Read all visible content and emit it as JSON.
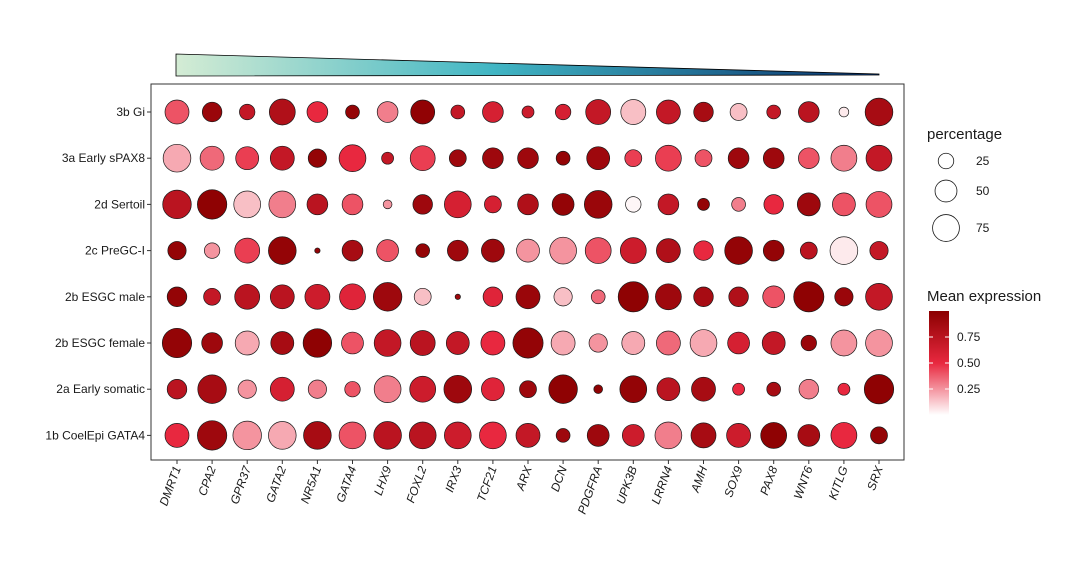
{
  "chart_data": {
    "type": "dotplot",
    "title": "",
    "xlabel": "",
    "ylabel": "",
    "genes": [
      "DMRT1",
      "CPA2",
      "GPR37",
      "GATA2",
      "NR5A1",
      "GATA4",
      "LHX9",
      "FOXL2",
      "IRX3",
      "TCF21",
      "ARX",
      "DCN",
      "PDGFRA",
      "UPK3B",
      "LRRN4",
      "AMH",
      "SOX9",
      "PAX8",
      "WNT6",
      "KITLG",
      "SRX"
    ],
    "groups": [
      "3b Gi",
      "3a Early sPAX8",
      "2d Sertoil",
      "2c PreGC-I",
      "2b ESGC male",
      "2b ESGC female",
      "2a Early somatic",
      "1b CoelEpi GATA4"
    ],
    "percentage": [
      [
        60,
        40,
        25,
        70,
        45,
        20,
        45,
        60,
        20,
        45,
        15,
        25,
        65,
        65,
        60,
        40,
        30,
        20,
        45,
        10,
        80
      ],
      [
        80,
        60,
        55,
        60,
        35,
        75,
        15,
        65,
        30,
        45,
        45,
        20,
        55,
        30,
        70,
        30,
        45,
        45,
        45,
        70,
        70
      ],
      [
        85,
        90,
        75,
        75,
        45,
        45,
        8,
        40,
        75,
        30,
        45,
        50,
        80,
        25,
        45,
        15,
        20,
        40,
        55,
        55,
        70
      ],
      [
        35,
        25,
        65,
        80,
        3,
        45,
        50,
        20,
        45,
        55,
        55,
        75,
        70,
        70,
        60,
        40,
        80,
        45,
        30,
        80,
        35
      ],
      [
        40,
        30,
        65,
        60,
        65,
        70,
        85,
        30,
        3,
        40,
        60,
        35,
        20,
        95,
        70,
        40,
        40,
        50,
        95,
        35,
        75
      ],
      [
        90,
        45,
        60,
        55,
        85,
        50,
        75,
        65,
        55,
        60,
        95,
        60,
        35,
        55,
        60,
        75,
        50,
        55,
        25,
        70,
        75
      ],
      [
        40,
        85,
        35,
        60,
        35,
        25,
        75,
        70,
        80,
        55,
        30,
        85,
        8,
        75,
        55,
        60,
        15,
        20,
        40,
        15,
        90
      ],
      [
        60,
        90,
        85,
        80,
        80,
        75,
        80,
        75,
        75,
        75,
        60,
        20,
        50,
        50,
        75,
        65,
        60,
        70,
        50,
        70,
        30
      ]
    ],
    "mean_expression": [
      [
        0.4,
        0.92,
        0.7,
        0.8,
        0.5,
        0.95,
        0.3,
        0.97,
        0.7,
        0.6,
        0.65,
        0.6,
        0.7,
        0.15,
        0.7,
        0.85,
        0.15,
        0.7,
        0.75,
        0.05,
        0.85
      ],
      [
        0.2,
        0.35,
        0.45,
        0.7,
        0.95,
        0.5,
        0.7,
        0.45,
        0.9,
        0.9,
        0.9,
        0.95,
        0.9,
        0.45,
        0.45,
        0.4,
        0.9,
        0.9,
        0.4,
        0.3,
        0.7
      ],
      [
        0.75,
        0.98,
        0.15,
        0.3,
        0.75,
        0.4,
        0.25,
        0.9,
        0.6,
        0.6,
        0.8,
        0.95,
        0.92,
        0.02,
        0.7,
        0.95,
        0.3,
        0.5,
        0.9,
        0.4,
        0.4
      ],
      [
        0.95,
        0.25,
        0.45,
        0.95,
        0.95,
        0.85,
        0.4,
        0.95,
        0.9,
        0.9,
        0.25,
        0.25,
        0.4,
        0.65,
        0.8,
        0.5,
        0.95,
        0.95,
        0.75,
        0.05,
        0.7
      ],
      [
        0.95,
        0.7,
        0.75,
        0.75,
        0.65,
        0.55,
        0.9,
        0.15,
        0.9,
        0.55,
        0.92,
        0.15,
        0.35,
        0.98,
        0.9,
        0.85,
        0.8,
        0.4,
        0.98,
        0.92,
        0.7
      ],
      [
        0.95,
        0.9,
        0.2,
        0.85,
        0.98,
        0.4,
        0.7,
        0.75,
        0.7,
        0.5,
        0.95,
        0.2,
        0.25,
        0.2,
        0.35,
        0.2,
        0.6,
        0.7,
        0.92,
        0.25,
        0.25
      ],
      [
        0.75,
        0.85,
        0.25,
        0.6,
        0.3,
        0.4,
        0.3,
        0.65,
        0.9,
        0.55,
        0.9,
        0.98,
        0.98,
        0.95,
        0.75,
        0.85,
        0.5,
        0.85,
        0.3,
        0.5,
        0.98
      ],
      [
        0.5,
        0.9,
        0.25,
        0.2,
        0.85,
        0.4,
        0.75,
        0.75,
        0.65,
        0.5,
        0.7,
        0.9,
        0.9,
        0.65,
        0.3,
        0.85,
        0.65,
        0.98,
        0.85,
        0.5,
        0.95
      ]
    ],
    "legend": {
      "size_title": "percentage",
      "size_breaks": [
        25,
        50,
        75
      ],
      "size_labels": [
        "25",
        "50",
        "75"
      ],
      "color_title": "Mean expression",
      "color_breaks": [
        0.75,
        0.5,
        0.25
      ],
      "color_labels": [
        "0.75",
        "0.50",
        "0.25"
      ],
      "color_range": [
        0,
        1
      ]
    },
    "colors": {
      "low": "#ffffff",
      "mid": "#e8283f",
      "high": "#8b0000",
      "gradient_start": "#d4ecd4",
      "gradient_mid": "#41b6c4",
      "gradient_end": "#08306b"
    }
  }
}
